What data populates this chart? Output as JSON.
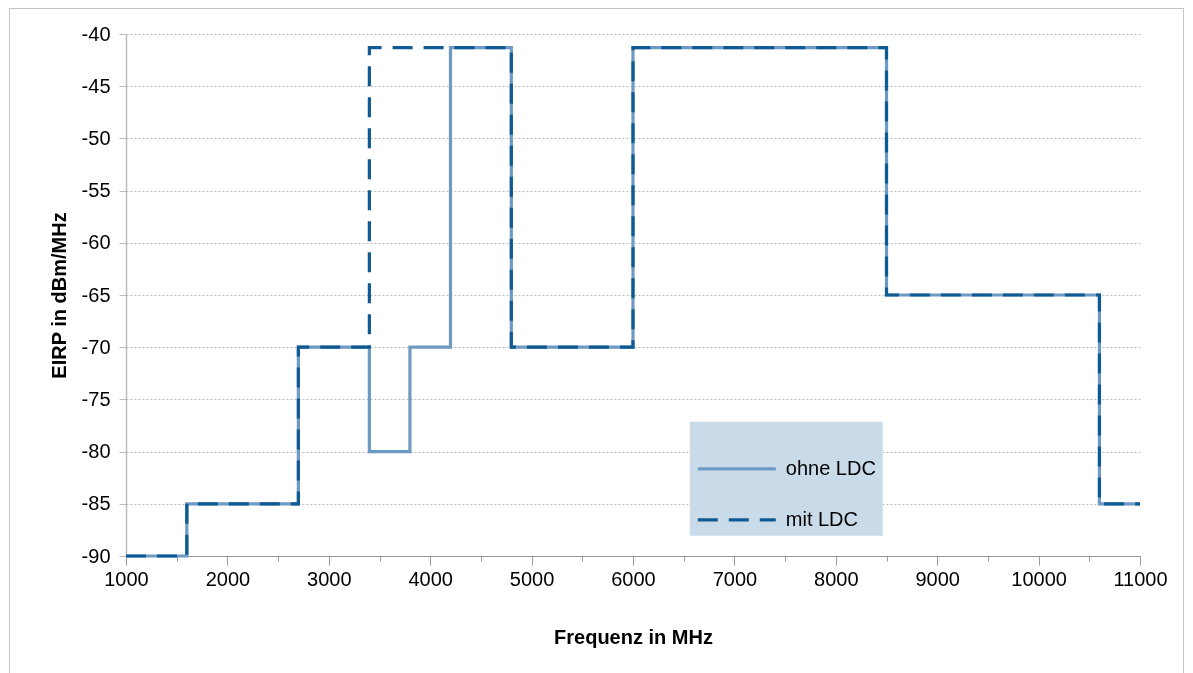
{
  "chart_data": {
    "type": "step",
    "xlabel": "Frequenz in MHz",
    "ylabel": "EIRP in dBm/MHz",
    "xlim": [
      1000,
      11000
    ],
    "xticks": [
      1000,
      {
        "value": 1500,
        "label": null
      },
      2000,
      {
        "value": 2500,
        "label": null
      },
      3000,
      {
        "value": 3500,
        "label": null
      },
      4000,
      {
        "value": 4500,
        "label": null
      },
      5000,
      {
        "value": 5500,
        "label": null
      },
      6000,
      {
        "value": 6500,
        "label": null
      },
      7000,
      {
        "value": 7500,
        "label": null
      },
      8000,
      {
        "value": 8500,
        "label": null
      },
      9000,
      {
        "value": 9500,
        "label": null
      },
      10000,
      {
        "value": 10500,
        "label": null
      },
      11000
    ],
    "ylim": [
      -90,
      -40
    ],
    "yticks": [
      -90,
      -85,
      -80,
      -75,
      -70,
      -65,
      -60,
      -55,
      -50,
      -45,
      -40
    ],
    "grid": "y",
    "legend": "bottom right",
    "series": [
      {
        "name": "ohne LDC",
        "color": "#6d9ac2",
        "line_style": "solid",
        "x": [
          1000,
          1600,
          2700,
          3400,
          3800,
          4200,
          4800,
          6000,
          8500,
          10600,
          11000
        ],
        "values": [
          -90,
          -85,
          -70,
          -80,
          -70,
          -41.3,
          -70,
          -41.3,
          -65,
          -85,
          -85
        ]
      },
      {
        "name": "mit LDC",
        "color": "#0f5a93",
        "line_style": "dashed",
        "x": [
          1000,
          1600,
          2700,
          3400,
          4800,
          6000,
          8500,
          10600,
          11000
        ],
        "values": [
          -90,
          -85,
          -70,
          -41.3,
          -70,
          -41.3,
          -65,
          -85,
          -85
        ]
      }
    ]
  }
}
